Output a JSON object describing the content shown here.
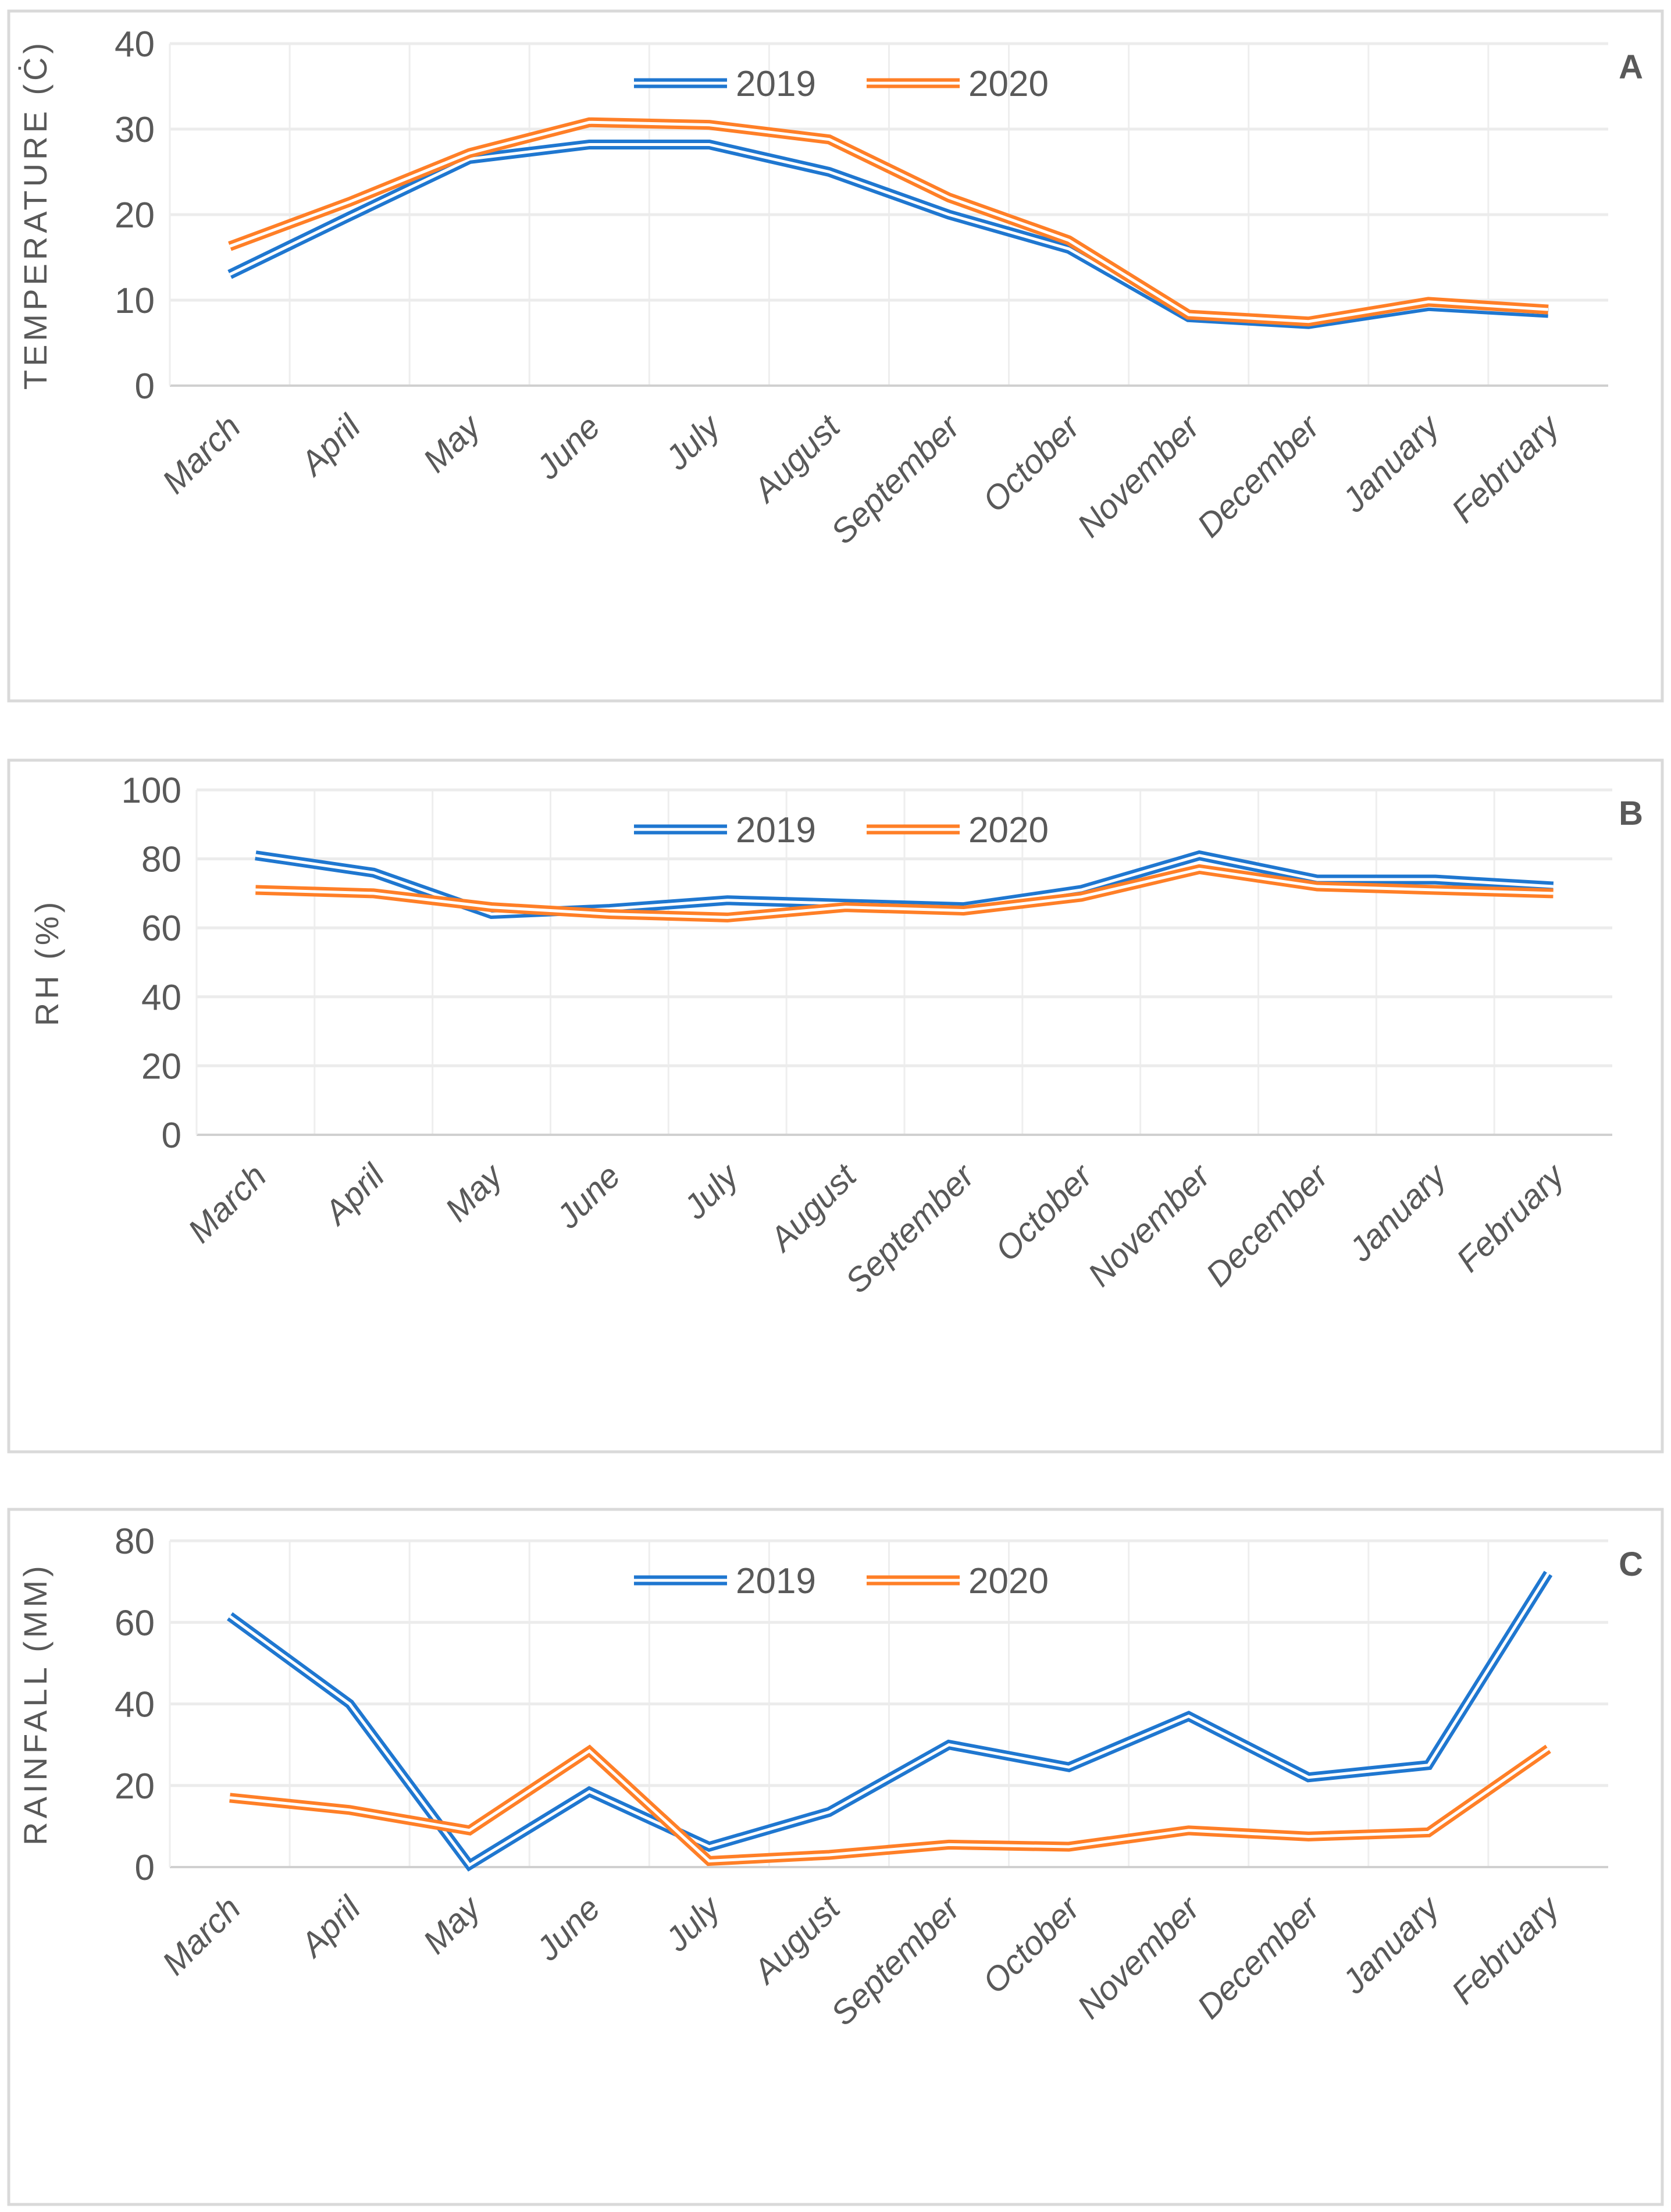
{
  "chart_data": [
    {
      "type": "line",
      "panel_letter": "A",
      "ylabel": "TEMPERATURE (Ċ)",
      "xlabel": "",
      "ylim": [
        0,
        40
      ],
      "yticks": [
        0,
        10,
        20,
        30,
        40
      ],
      "grid": true,
      "legend": "top-center",
      "categories": [
        "March",
        "April",
        "May",
        "June",
        "July",
        "August",
        "September",
        "October",
        "November",
        "December",
        "January",
        "February"
      ],
      "series": [
        {
          "name": "2019",
          "color": "#1f77d0",
          "values": [
            13,
            19.8,
            26.5,
            28.2,
            28.2,
            25,
            20,
            16,
            8,
            7.2,
            9.3,
            8.5
          ]
        },
        {
          "name": "2020",
          "color": "#ff7f27",
          "values": [
            16.3,
            21.5,
            27.2,
            30.8,
            30.5,
            28.8,
            22,
            17,
            8.3,
            7.5,
            9.8,
            8.9
          ]
        }
      ]
    },
    {
      "type": "line",
      "panel_letter": "B",
      "ylabel": "RH (%)",
      "xlabel": "",
      "ylim": [
        0,
        100
      ],
      "yticks": [
        0,
        20,
        40,
        60,
        80,
        100
      ],
      "grid": true,
      "legend": "top-center",
      "categories": [
        "March",
        "April",
        "May",
        "June",
        "July",
        "August",
        "September",
        "October",
        "November",
        "December",
        "January",
        "February"
      ],
      "series": [
        {
          "name": "2019",
          "color": "#1f77d0",
          "values": [
            81,
            76,
            64,
            65.5,
            68,
            67,
            66,
            71,
            81,
            74,
            74,
            72
          ]
        },
        {
          "name": "2020",
          "color": "#ff7f27",
          "values": [
            71,
            70,
            66,
            64,
            63,
            66,
            65,
            69,
            77,
            72,
            71,
            70
          ]
        }
      ]
    },
    {
      "type": "line",
      "panel_letter": "C",
      "ylabel": "RAINFALL (MM)",
      "xlabel": "",
      "ylim": [
        0,
        80
      ],
      "yticks": [
        0,
        20,
        40,
        60,
        80
      ],
      "grid": true,
      "legend": "top-center",
      "categories": [
        "March",
        "April",
        "May",
        "June",
        "July",
        "August",
        "September",
        "October",
        "November",
        "December",
        "January",
        "February"
      ],
      "series": [
        {
          "name": "2019",
          "color": "#1f77d0",
          "values": [
            61.5,
            40,
            0.5,
            18.5,
            5,
            13.5,
            30,
            24.5,
            37,
            22,
            25,
            72
          ]
        },
        {
          "name": "2020",
          "color": "#ff7f27",
          "values": [
            17,
            14,
            9,
            28.5,
            1.5,
            3,
            5.5,
            5,
            9,
            7.5,
            8.5,
            29
          ]
        }
      ]
    }
  ]
}
